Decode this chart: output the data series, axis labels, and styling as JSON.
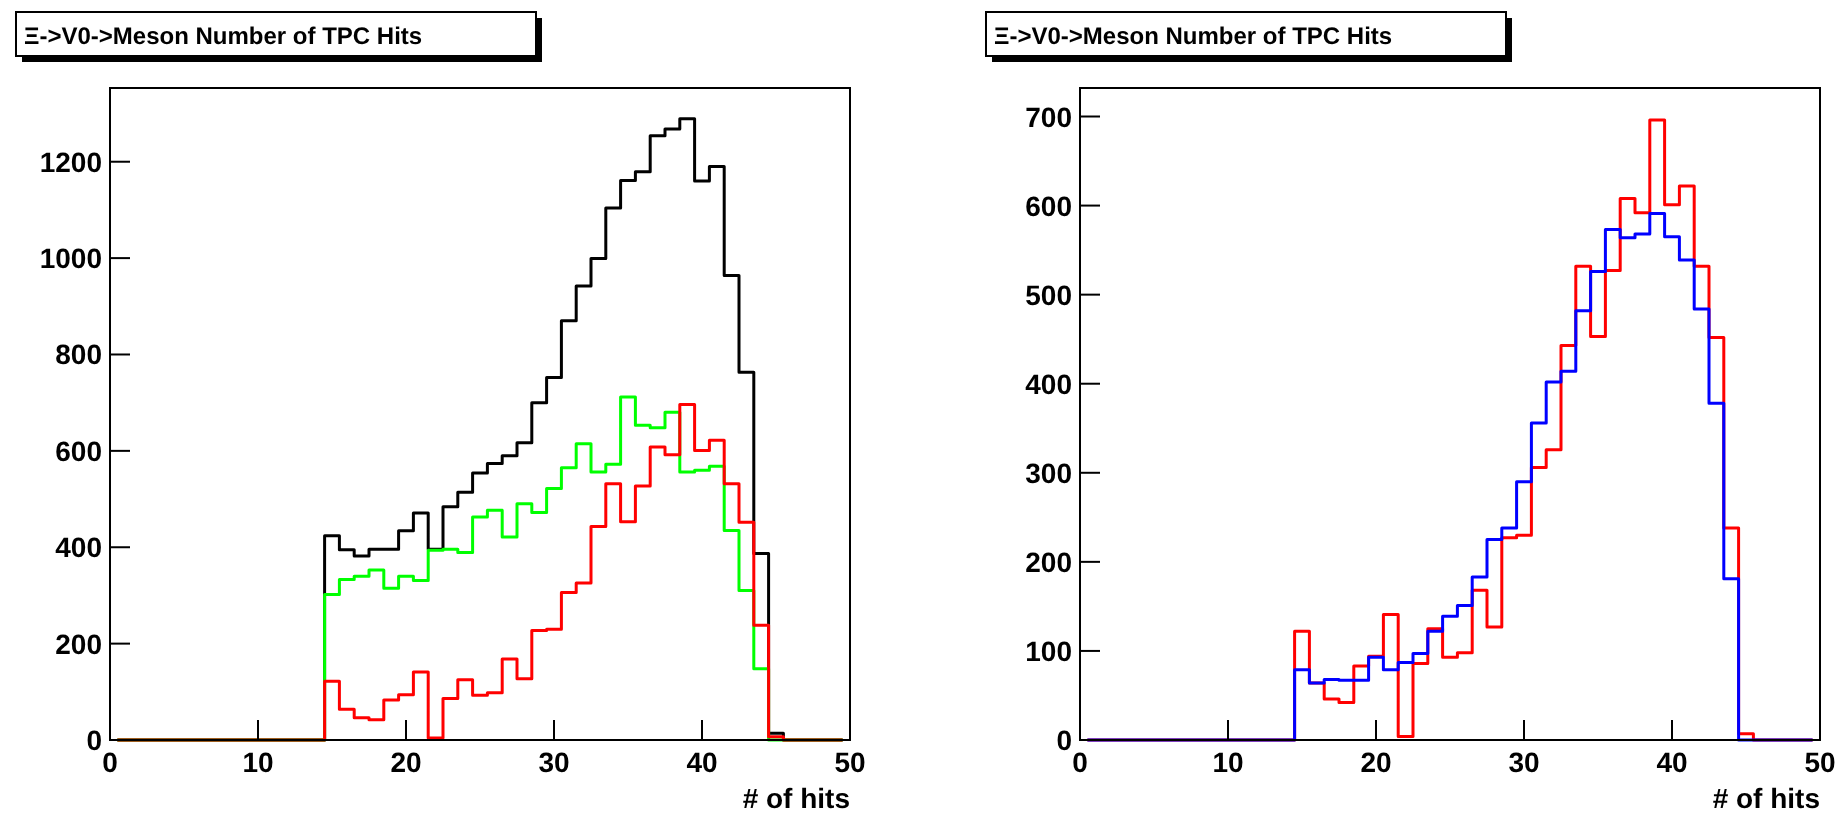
{
  "chart_data": [
    {
      "type": "histogram",
      "title": "Ξ->V0->Meson Number of TPC Hits",
      "xlabel": "# of hits",
      "bins": [
        0.5,
        1.5,
        2.5,
        3.5,
        4.5,
        5.5,
        6.5,
        7.5,
        8.5,
        9.5,
        10.5,
        11.5,
        12.5,
        13.5,
        14.5,
        15.5,
        16.5,
        17.5,
        18.5,
        19.5,
        20.5,
        21.5,
        22.5,
        23.5,
        24.5,
        25.5,
        26.5,
        27.5,
        28.5,
        29.5,
        30.5,
        31.5,
        32.5,
        33.5,
        34.5,
        35.5,
        36.5,
        37.5,
        38.5,
        39.5,
        40.5,
        41.5,
        42.5,
        43.5,
        44.5,
        45.5,
        46.5,
        47.5,
        48.5,
        49.5
      ],
      "xlim": [
        0,
        50
      ],
      "xticks": [
        0,
        10,
        20,
        30,
        40,
        50
      ],
      "ylim": [
        0,
        1353
      ],
      "yticks": [
        0,
        200,
        400,
        600,
        800,
        1000,
        1200
      ],
      "grid": false,
      "series": [
        {
          "color": "#000000",
          "values": [
            0,
            0,
            0,
            0,
            0,
            0,
            0,
            0,
            0,
            0,
            0,
            0,
            0,
            0,
            424,
            395,
            382,
            396,
            396,
            434,
            471,
            396,
            484,
            514,
            554,
            574,
            590,
            617,
            700,
            752,
            870,
            942,
            999,
            1104,
            1161,
            1179,
            1254,
            1268,
            1289,
            1160,
            1190,
            964,
            763,
            387,
            14,
            0,
            0,
            0,
            0
          ]
        },
        {
          "color": "#00ff00",
          "values": [
            0,
            0,
            0,
            0,
            0,
            0,
            0,
            0,
            0,
            0,
            0,
            0,
            0,
            0,
            302,
            333,
            340,
            353,
            315,
            340,
            331,
            394,
            396,
            389,
            463,
            477,
            421,
            490,
            472,
            522,
            565,
            615,
            556,
            572,
            712,
            653,
            648,
            680,
            556,
            560,
            568,
            435,
            310,
            148,
            0,
            0,
            0,
            0,
            0
          ]
        },
        {
          "color": "#ff0000",
          "values": [
            0,
            0,
            0,
            0,
            0,
            0,
            0,
            0,
            0,
            0,
            0,
            0,
            0,
            0,
            122,
            64,
            46,
            42,
            83,
            94,
            141,
            4,
            86,
            125,
            93,
            98,
            168,
            127,
            227,
            230,
            306,
            326,
            443,
            532,
            453,
            527,
            608,
            592,
            696,
            601,
            622,
            532,
            452,
            238,
            7,
            0,
            0,
            0,
            0
          ]
        }
      ]
    },
    {
      "type": "histogram",
      "title": "Ξ->V0->Meson Number of TPC Hits",
      "xlabel": "# of hits",
      "bins": [
        0.5,
        1.5,
        2.5,
        3.5,
        4.5,
        5.5,
        6.5,
        7.5,
        8.5,
        9.5,
        10.5,
        11.5,
        12.5,
        13.5,
        14.5,
        15.5,
        16.5,
        17.5,
        18.5,
        19.5,
        20.5,
        21.5,
        22.5,
        23.5,
        24.5,
        25.5,
        26.5,
        27.5,
        28.5,
        29.5,
        30.5,
        31.5,
        32.5,
        33.5,
        34.5,
        35.5,
        36.5,
        37.5,
        38.5,
        39.5,
        40.5,
        41.5,
        42.5,
        43.5,
        44.5,
        45.5,
        46.5,
        47.5,
        48.5,
        49.5
      ],
      "xlim": [
        0,
        50
      ],
      "xticks": [
        0,
        10,
        20,
        30,
        40,
        50
      ],
      "ylim": [
        0,
        732
      ],
      "yticks": [
        0,
        100,
        200,
        300,
        400,
        500,
        600,
        700
      ],
      "grid": false,
      "series": [
        {
          "color": "#ff0000",
          "values": [
            0,
            0,
            0,
            0,
            0,
            0,
            0,
            0,
            0,
            0,
            0,
            0,
            0,
            0,
            122,
            64,
            46,
            42,
            83,
            94,
            141,
            4,
            86,
            125,
            93,
            98,
            168,
            127,
            227,
            230,
            306,
            326,
            443,
            532,
            453,
            527,
            608,
            592,
            696,
            601,
            622,
            532,
            452,
            238,
            7,
            0,
            0,
            0,
            0
          ]
        },
        {
          "color": "#0000ff",
          "values": [
            0,
            0,
            0,
            0,
            0,
            0,
            0,
            0,
            0,
            0,
            0,
            0,
            0,
            0,
            79,
            64,
            68,
            67,
            67,
            93,
            79,
            87,
            97,
            122,
            139,
            151,
            183,
            225,
            238,
            290,
            356,
            402,
            414,
            482,
            526,
            573,
            564,
            568,
            591,
            565,
            539,
            484,
            378,
            181,
            0,
            0,
            0,
            0,
            0
          ]
        }
      ]
    }
  ]
}
